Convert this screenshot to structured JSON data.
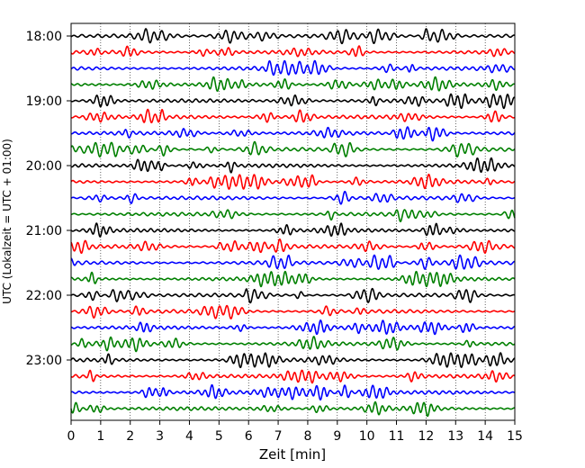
{
  "chart_data": {
    "type": "line",
    "title": "",
    "xlabel": "Zeit  [min]",
    "ylabel": "UTC (Lokalzeit = UTC + 01:00)",
    "xlim": [
      0,
      15
    ],
    "x_ticks": [
      0,
      1,
      2,
      3,
      4,
      5,
      6,
      7,
      8,
      9,
      10,
      11,
      12,
      13,
      14,
      15
    ],
    "y_tick_labels": [
      "18:00",
      "19:00",
      "20:00",
      "21:00",
      "22:00",
      "23:00"
    ],
    "start_time": "18:00",
    "trace_interval_min": 15,
    "trace_count": 24,
    "trace_colors": [
      "#000000",
      "#ff0000",
      "#0000ff",
      "#008000"
    ],
    "grid_x": true,
    "grid_style": "dotted",
    "legend": "none"
  }
}
